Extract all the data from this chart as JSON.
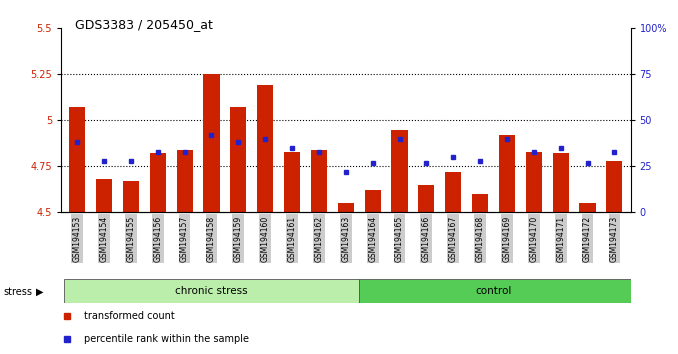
{
  "title": "GDS3383 / 205450_at",
  "samples": [
    "GSM194153",
    "GSM194154",
    "GSM194155",
    "GSM194156",
    "GSM194157",
    "GSM194158",
    "GSM194159",
    "GSM194160",
    "GSM194161",
    "GSM194162",
    "GSM194163",
    "GSM194164",
    "GSM194165",
    "GSM194166",
    "GSM194167",
    "GSM194168",
    "GSM194169",
    "GSM194170",
    "GSM194171",
    "GSM194172",
    "GSM194173"
  ],
  "red_values": [
    5.07,
    4.68,
    4.67,
    4.82,
    4.84,
    5.25,
    5.07,
    5.19,
    4.83,
    4.84,
    4.55,
    4.62,
    4.95,
    4.65,
    4.72,
    4.6,
    4.92,
    4.83,
    4.82,
    4.55,
    4.78
  ],
  "blue_values": [
    38,
    28,
    28,
    33,
    33,
    42,
    38,
    40,
    35,
    33,
    22,
    27,
    40,
    27,
    30,
    28,
    40,
    33,
    35,
    27,
    33
  ],
  "ylim_left": [
    4.5,
    5.5
  ],
  "ylim_right": [
    0,
    100
  ],
  "yticks_left": [
    4.5,
    4.75,
    5.0,
    5.25,
    5.5
  ],
  "yticks_right": [
    0,
    25,
    50,
    75,
    100
  ],
  "ytick_labels_right": [
    "0",
    "25",
    "50",
    "75",
    "100%"
  ],
  "baseline": 4.5,
  "chronic_stress_count": 11,
  "control_count": 10,
  "bar_color": "#cc2200",
  "dot_color": "#2222cc",
  "chronic_label": "chronic stress",
  "control_label": "control",
  "stress_label": "stress",
  "legend_red": "transformed count",
  "legend_blue": "percentile rank within the sample",
  "group_bar_chronic": "#bbeeaa",
  "group_bar_control": "#55cc55",
  "hline_color": "#000000",
  "tick_bg_color": "#cccccc"
}
